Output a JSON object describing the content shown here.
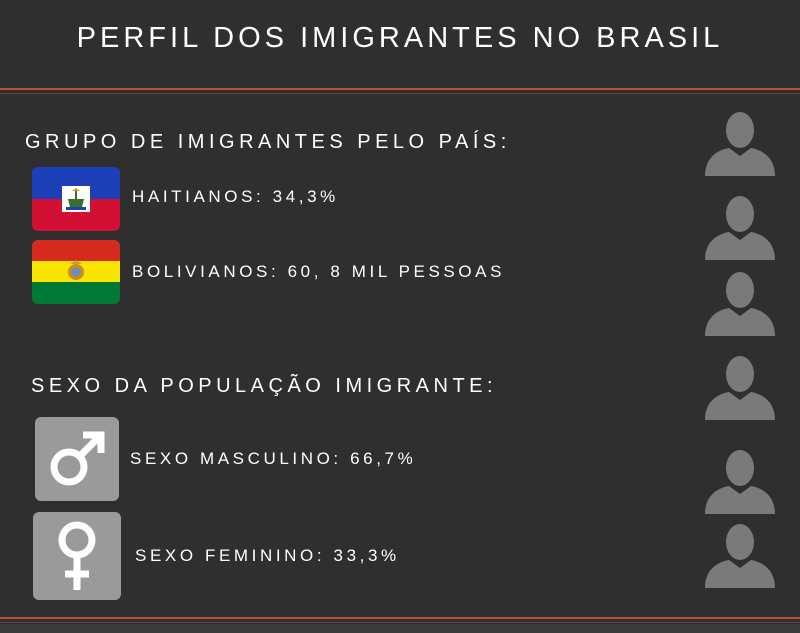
{
  "title": "PERFIL DOS IMIGRANTES NO BRASIL",
  "section_country": {
    "heading": "GRUPO DE IMIGRANTES PELO PAÍS:",
    "items": [
      {
        "label": "HAITIANOS: 34,3%",
        "icon": "haiti-flag-icon"
      },
      {
        "label": "BOLIVIANOS: 60, 8 MIL PESSOAS",
        "icon": "bolivia-flag-icon"
      }
    ]
  },
  "section_sex": {
    "heading": "SEXO DA POPULAÇÃO IMIGRANTE:",
    "items": [
      {
        "label": "SEXO MASCULINO: 66,7%",
        "icon": "male-symbol-icon"
      },
      {
        "label": "SEXO FEMININO: 33,3%",
        "icon": "female-symbol-icon"
      }
    ]
  },
  "colors": {
    "background": "#2f2f2f",
    "accent_rule": "#b8503a",
    "text": "#ffffff",
    "icon_box": "#9a9a9a",
    "person_icon": "#7a7a7a"
  }
}
